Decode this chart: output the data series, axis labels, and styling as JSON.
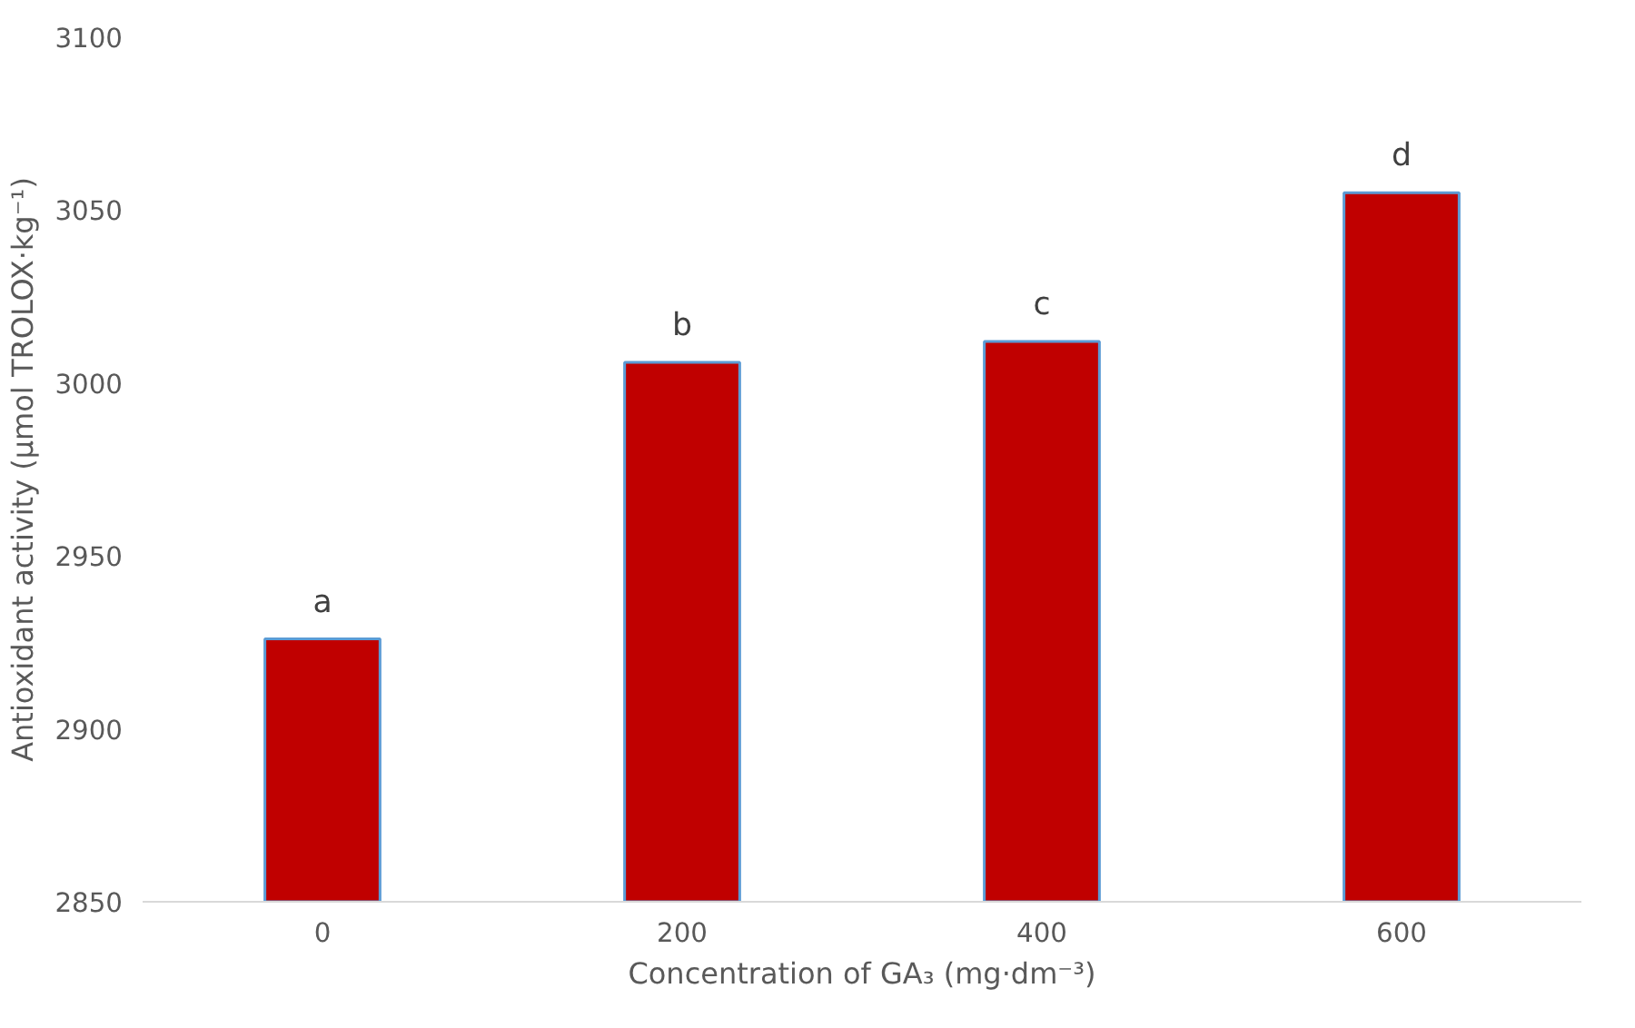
{
  "chart_data": {
    "type": "bar",
    "xlabel": "Concentration of GA₃ (mg·dm⁻³)",
    "ylabel": "Antioxidant activity (µmol TROLOX·kg⁻¹)",
    "categories": [
      "0",
      "200",
      "400",
      "600"
    ],
    "series": [
      {
        "color": "#c00000",
        "values": [
          2926,
          3006,
          3012,
          3055
        ]
      }
    ],
    "ylim": [
      2850,
      3100
    ],
    "yticks": [
      2850,
      2900,
      2950,
      3000,
      3050,
      3100
    ],
    "grid": false,
    "annotations": [
      {
        "text": "a",
        "x": "0",
        "y": 2926
      },
      {
        "text": "b",
        "x": "200",
        "y": 3006
      },
      {
        "text": "c",
        "x": "400",
        "y": 3012
      },
      {
        "text": "d",
        "x": "600",
        "y": 3055
      }
    ]
  }
}
